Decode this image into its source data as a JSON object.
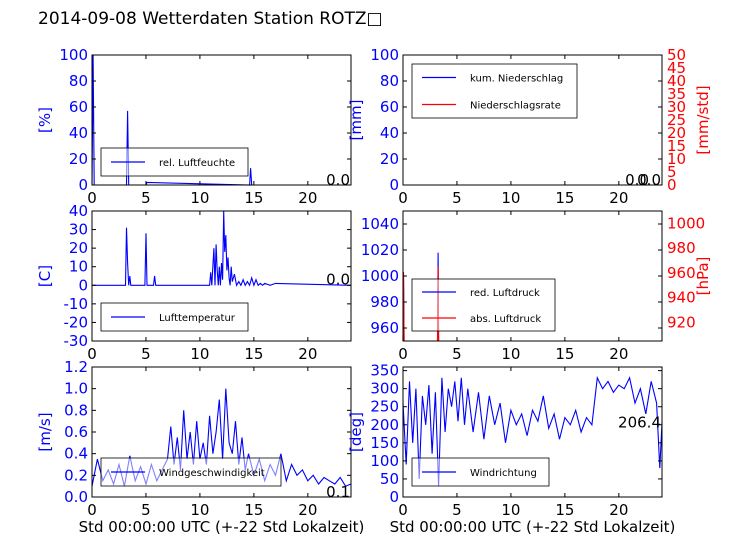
{
  "page": {
    "title": "2014-09-08 Wetterdaten Station ROTZ□"
  },
  "colors": {
    "primary": "#0000ff",
    "secondary": "#ff0000",
    "axis": "#000000",
    "fill": "#ffffff"
  },
  "chart_data": [
    {
      "id": "humidity",
      "type": "line",
      "xlim": [
        0,
        24
      ],
      "ylim": [
        0,
        100
      ],
      "xticks": [
        0,
        5,
        10,
        15,
        20
      ],
      "yticks": [
        0,
        20,
        40,
        60,
        80,
        100
      ],
      "ylabel": "[%]",
      "xlabel": "",
      "legend_position": "lower-left",
      "current_value": "0.0",
      "series": [
        {
          "name": "rel. Luftfeuchte",
          "color": "#0000ff",
          "x": [
            0,
            0.1,
            0.2,
            3.2,
            3.3,
            3.4,
            5.0,
            5.1,
            14.6,
            14.7,
            14.8,
            24
          ],
          "y": [
            0,
            100,
            0,
            0,
            57,
            0,
            0,
            2,
            0,
            13,
            0,
            0
          ]
        }
      ]
    },
    {
      "id": "precipitation",
      "type": "line",
      "xlim": [
        0,
        24
      ],
      "ylim": [
        0,
        100
      ],
      "xticks": [
        0,
        5,
        10,
        15,
        20
      ],
      "yticks": [
        0,
        20,
        40,
        60,
        80,
        100
      ],
      "ylabel": "[mm]",
      "y2lim": [
        0,
        50
      ],
      "y2ticks": [
        0,
        5,
        10,
        15,
        20,
        25,
        30,
        35,
        40,
        45,
        50
      ],
      "y2label": "[mm/std]",
      "legend_position": "upper-left",
      "current_value": "0.0",
      "current_value_2": "0.0",
      "series": [
        {
          "name": "kum. Niederschlag",
          "color": "#0000ff",
          "x": [
            0,
            24
          ],
          "y": [
            0,
            0
          ]
        },
        {
          "name": "Niederschlagsrate",
          "color": "#ff0000",
          "x": [
            0,
            24
          ],
          "y": [
            0,
            0
          ],
          "axis": "right"
        }
      ]
    },
    {
      "id": "temperature",
      "type": "line",
      "xlim": [
        0,
        24
      ],
      "ylim": [
        -30,
        40
      ],
      "xticks": [
        0,
        5,
        10,
        15,
        20
      ],
      "yticks": [
        -30,
        -20,
        -10,
        0,
        10,
        20,
        30,
        40
      ],
      "ylabel": "[C]",
      "legend_position": "lower-left",
      "current_value": "0.0",
      "series": [
        {
          "name": "Lufttemperatur",
          "color": "#0000ff",
          "x": [
            0,
            3.1,
            3.2,
            3.3,
            3.4,
            3.5,
            3.6,
            4.9,
            5.0,
            5.1,
            5.2,
            5.7,
            5.8,
            5.9,
            10.9,
            11.0,
            11.1,
            11.3,
            11.4,
            11.5,
            11.6,
            11.7,
            11.8,
            11.9,
            12.0,
            12.1,
            12.2,
            12.3,
            12.4,
            12.5,
            12.6,
            12.7,
            12.8,
            12.9,
            13.0,
            13.2,
            13.4,
            13.6,
            13.8,
            14.0,
            14.2,
            14.4,
            14.6,
            14.8,
            15.0,
            15.2,
            15.4,
            15.6,
            15.8,
            16.0,
            16.5,
            17.0,
            24
          ],
          "y": [
            0,
            0,
            31,
            12,
            0,
            5,
            0,
            0,
            28,
            0,
            0,
            0,
            5,
            0,
            0,
            7,
            0,
            20,
            0,
            22,
            8,
            0,
            10,
            0,
            12,
            3,
            40,
            18,
            27,
            8,
            15,
            4,
            0,
            10,
            2,
            6,
            0,
            2,
            0,
            3,
            0,
            2,
            0,
            4,
            0,
            3,
            0,
            1,
            0,
            1,
            0,
            1,
            0
          ]
        }
      ]
    },
    {
      "id": "pressure",
      "type": "line",
      "xlim": [
        0,
        24
      ],
      "ylim": [
        950,
        1050
      ],
      "xticks": [
        0,
        5,
        10,
        15,
        20
      ],
      "yticks": [
        960,
        980,
        1000,
        1020,
        1040
      ],
      "ylabel": "",
      "y2lim": [
        905,
        1010
      ],
      "y2ticks": [
        920,
        940,
        960,
        980,
        1000
      ],
      "y2label": "[hPa]",
      "legend_position": "lower-left",
      "series": [
        {
          "name": "red. Luftdruck",
          "color": "#0000ff",
          "x": [
            0,
            0.05,
            0.1,
            3.2,
            3.25,
            3.3,
            24
          ],
          "y": [
            950,
            1003,
            950,
            950,
            1018,
            950,
            950
          ]
        },
        {
          "name": "abs. Luftdruck",
          "color": "#ff0000",
          "axis": "right",
          "x": [
            0,
            0.05,
            0.1,
            3.2,
            3.25,
            3.3,
            24
          ],
          "y": [
            905,
            960,
            905,
            905,
            965,
            905,
            905
          ]
        }
      ]
    },
    {
      "id": "wind_speed",
      "type": "line",
      "xlim": [
        0,
        24
      ],
      "ylim": [
        0,
        1.2
      ],
      "xticks": [
        0,
        5,
        10,
        15,
        20
      ],
      "yticks": [
        0.0,
        0.2,
        0.4,
        0.6,
        0.8,
        1.0,
        1.2
      ],
      "ylabel": "[m/s]",
      "xlabel": "Std 00:00:00 UTC (+-22 Std Lokalzeit)",
      "legend_position": "lower-center",
      "current_value": "0.1",
      "series": [
        {
          "name": "Windgeschwindigkeit",
          "color": "#0000ff",
          "x": [
            0,
            0.5,
            1,
            1.5,
            2,
            2.5,
            3,
            3.5,
            4,
            4.5,
            5,
            5.5,
            6,
            6.5,
            7,
            7.3,
            7.6,
            7.9,
            8.2,
            8.5,
            8.8,
            9.1,
            9.4,
            9.7,
            10,
            10.3,
            10.6,
            10.9,
            11.2,
            11.5,
            11.8,
            12.1,
            12.4,
            12.7,
            13,
            13.3,
            13.6,
            13.9,
            14.2,
            14.5,
            15,
            15.5,
            16,
            16.5,
            17,
            17.5,
            18,
            18.5,
            19,
            19.5,
            20,
            20.5,
            21,
            21.5,
            22,
            22.5,
            23,
            23.5,
            24
          ],
          "y": [
            0.1,
            0.35,
            0.15,
            0.25,
            0.12,
            0.3,
            0.1,
            0.38,
            0.15,
            0.28,
            0.12,
            0.3,
            0.15,
            0.25,
            0.35,
            0.65,
            0.3,
            0.55,
            0.25,
            0.8,
            0.35,
            0.6,
            0.3,
            0.7,
            0.35,
            0.5,
            0.3,
            0.75,
            0.4,
            0.6,
            0.9,
            0.35,
            1.0,
            0.5,
            0.4,
            0.7,
            0.3,
            0.55,
            0.25,
            0.4,
            0.2,
            0.35,
            0.15,
            0.3,
            0.2,
            0.4,
            0.15,
            0.3,
            0.2,
            0.25,
            0.15,
            0.2,
            0.12,
            0.18,
            0.15,
            0.12,
            0.18,
            0.1,
            0.12
          ]
        }
      ]
    },
    {
      "id": "wind_direction",
      "type": "line",
      "xlim": [
        0,
        24
      ],
      "ylim": [
        0,
        360
      ],
      "xticks": [
        0,
        5,
        10,
        15,
        20
      ],
      "yticks": [
        0,
        50,
        100,
        150,
        200,
        250,
        300,
        350
      ],
      "ylabel": "[deg]",
      "xlabel": "Std 00:00:00 UTC (+-22 Std Lokalzeit)",
      "legend_position": "lower-left",
      "current_value": "206.4",
      "series": [
        {
          "name": "Windrichtung",
          "color": "#0000ff",
          "x": [
            0,
            0.3,
            0.6,
            0.9,
            1.2,
            1.5,
            1.8,
            2.1,
            2.4,
            2.7,
            3.0,
            3.3,
            3.6,
            3.9,
            4.2,
            4.5,
            4.8,
            5.1,
            5.4,
            5.7,
            6.0,
            6.5,
            7.0,
            7.5,
            8.0,
            8.5,
            9.0,
            9.5,
            10.0,
            10.5,
            11.0,
            11.5,
            12.0,
            12.5,
            13.0,
            13.5,
            14.0,
            14.5,
            15.0,
            15.5,
            16.0,
            16.5,
            17.0,
            17.5,
            18.0,
            18.5,
            19.0,
            19.5,
            20.0,
            20.5,
            21.0,
            21.5,
            22.0,
            22.5,
            23.0,
            23.5,
            23.8,
            24
          ],
          "y": [
            260,
            90,
            320,
            150,
            300,
            50,
            280,
            200,
            310,
            120,
            290,
            30,
            330,
            180,
            300,
            250,
            320,
            210,
            330,
            200,
            300,
            180,
            290,
            160,
            280,
            200,
            260,
            150,
            240,
            200,
            230,
            170,
            240,
            210,
            280,
            190,
            230,
            160,
            220,
            200,
            240,
            180,
            220,
            200,
            330,
            300,
            320,
            290,
            310,
            300,
            330,
            260,
            300,
            230,
            320,
            260,
            80,
            206
          ]
        }
      ]
    }
  ]
}
